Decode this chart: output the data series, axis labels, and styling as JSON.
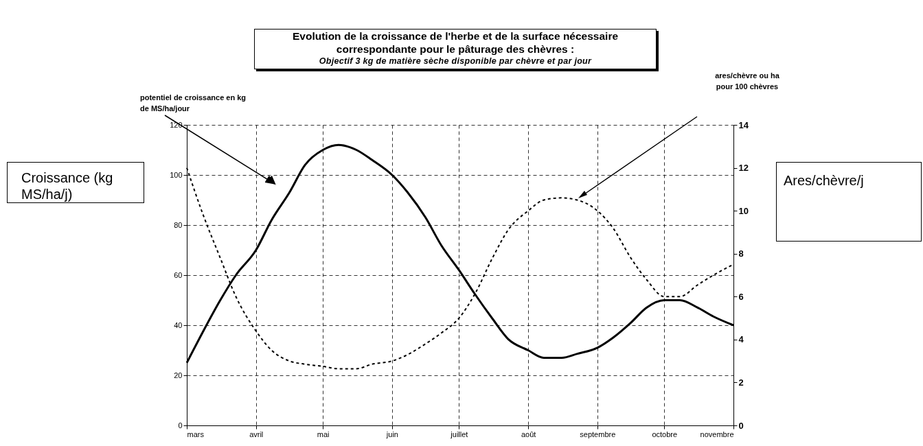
{
  "chart_data": {
    "type": "line",
    "title": "Evolution de la croissance de l'herbe et de la surface nécessaire correspondante pour le pâturage des chèvres :",
    "subtitle": "Objectif 3 kg de matière sèche disponible par chèvre et par jour",
    "ylabel": "Croissance (kg MS/ha/j)",
    "y2label": "Ares/chèvre/j",
    "annotations": [
      "potentiel de croissance en kg de MS/ha/jour",
      "ares/chèvre ou ha pour 100 chèvres"
    ],
    "x": [
      "--03-01",
      "--03-08",
      "--03-16",
      "--03-23",
      "--04-01",
      "--04-08",
      "--04-16",
      "--04-23",
      "--05-01",
      "--05-08",
      "--05-16",
      "--05-23",
      "--06-01",
      "--06-08",
      "--06-16",
      "--06-23",
      "--07-01",
      "--07-08",
      "--07-16",
      "--07-23",
      "--08-01",
      "--08-08",
      "--08-16",
      "--08-23",
      "--09-01",
      "--09-08",
      "--09-16",
      "--09-23",
      "--10-01",
      "--10-08",
      "--10-16",
      "--10-23",
      "--11-01"
    ],
    "series": [
      {
        "color": "#000000",
        "line_style": "solid",
        "axis": "y",
        "values": [
          25,
          37,
          50,
          60,
          70,
          82,
          93,
          104,
          110,
          112,
          110,
          106,
          100,
          93,
          83,
          72,
          62,
          52.6,
          42.6,
          34.5,
          30,
          27,
          27,
          28.6,
          31,
          35,
          41,
          47,
          50,
          50,
          47,
          43.5,
          40
        ]
      },
      {
        "color": "#000000",
        "line_style": "dashed",
        "axis": "y2",
        "values": [
          12,
          9.9,
          7.8,
          6,
          4.4,
          3.5,
          3,
          2.85,
          2.75,
          2.64,
          2.64,
          2.85,
          3,
          3.3,
          3.8,
          4.3,
          5,
          6.1,
          7.8,
          9.1,
          10,
          10.5,
          10.6,
          10.5,
          10,
          9.2,
          7.8,
          6.8,
          6,
          6,
          6.55,
          7,
          7.5
        ]
      }
    ],
    "xlim": [
      "--03-01",
      "--11-01"
    ],
    "xticks": [
      {
        "value": "--03-01",
        "label": "mars"
      },
      {
        "value": "--04-01",
        "label": "avril"
      },
      {
        "value": "--05-01",
        "label": "mai"
      },
      {
        "value": "--06-01",
        "label": "juin"
      },
      {
        "value": "--07-01",
        "label": "juillet"
      },
      {
        "value": "--08-01",
        "label": "août"
      },
      {
        "value": "--09-01",
        "label": "septembre"
      },
      {
        "value": "--10-01",
        "label": "octobre"
      },
      {
        "value": "--11-01",
        "label": "novembre"
      }
    ],
    "ylim": [
      0,
      120
    ],
    "yticks": [
      0,
      20,
      40,
      60,
      80,
      100,
      120
    ],
    "y2lim": [
      0,
      14
    ],
    "y2ticks": [
      0,
      2,
      4,
      6,
      8,
      10,
      12,
      14
    ],
    "grid": true
  }
}
